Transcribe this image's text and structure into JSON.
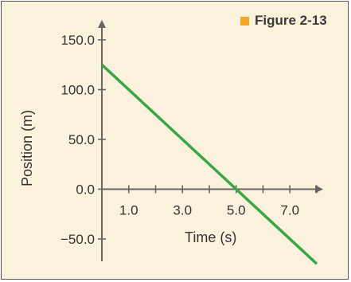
{
  "figure_label": "Figure 2-13",
  "colors": {
    "background": "#fbf2de",
    "axis": "#666666",
    "line": "#3aa645",
    "legend_square": "#f5a623"
  },
  "chart_data": {
    "type": "line",
    "title": "",
    "xlabel": "Time (s)",
    "ylabel": "Position (m)",
    "xlim": [
      0,
      8
    ],
    "ylim": [
      -70,
      170
    ],
    "x_ticks": [
      1,
      2,
      3,
      4,
      5,
      6,
      7,
      8
    ],
    "x_tick_labels": [
      {
        "x": 1,
        "label": "1.0"
      },
      {
        "x": 3,
        "label": "3.0"
      },
      {
        "x": 5,
        "label": "5.0"
      },
      {
        "x": 7,
        "label": "7.0"
      }
    ],
    "y_ticks": [
      {
        "y": 150,
        "label": "150.0"
      },
      {
        "y": 100,
        "label": "100.0"
      },
      {
        "y": 50,
        "label": "50.0"
      },
      {
        "y": 0,
        "label": "0.0"
      },
      {
        "y": -50,
        "label": "−50.0"
      }
    ],
    "series": [
      {
        "x": [
          0,
          8
        ],
        "values": [
          125,
          -75
        ]
      }
    ],
    "grid": false,
    "legend": "none"
  }
}
